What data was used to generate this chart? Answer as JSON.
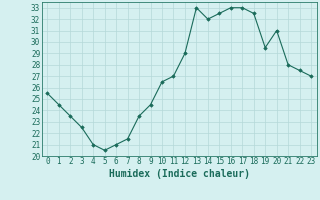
{
  "x": [
    0,
    1,
    2,
    3,
    4,
    5,
    6,
    7,
    8,
    9,
    10,
    11,
    12,
    13,
    14,
    15,
    16,
    17,
    18,
    19,
    20,
    21,
    22,
    23
  ],
  "y": [
    25.5,
    24.5,
    23.5,
    22.5,
    21.0,
    20.5,
    21.0,
    21.5,
    23.5,
    24.5,
    26.5,
    27.0,
    29.0,
    33.0,
    32.0,
    32.5,
    33.0,
    33.0,
    32.5,
    29.5,
    31.0,
    28.0,
    27.5,
    27.0
  ],
  "xlabel": "Humidex (Indice chaleur)",
  "xlim": [
    -0.5,
    23.5
  ],
  "ylim": [
    20,
    33.5
  ],
  "yticks": [
    20,
    21,
    22,
    23,
    24,
    25,
    26,
    27,
    28,
    29,
    30,
    31,
    32,
    33
  ],
  "xticks": [
    0,
    1,
    2,
    3,
    4,
    5,
    6,
    7,
    8,
    9,
    10,
    11,
    12,
    13,
    14,
    15,
    16,
    17,
    18,
    19,
    20,
    21,
    22,
    23
  ],
  "line_color": "#1a6b5a",
  "marker": "D",
  "marker_size": 1.8,
  "bg_color": "#d5f0f0",
  "grid_color": "#b5d8d8",
  "axes_color": "#2a7a6a",
  "tick_label_color": "#1a6b5a",
  "xlabel_color": "#1a6b5a",
  "xlabel_fontsize": 7,
  "tick_fontsize": 5.5
}
